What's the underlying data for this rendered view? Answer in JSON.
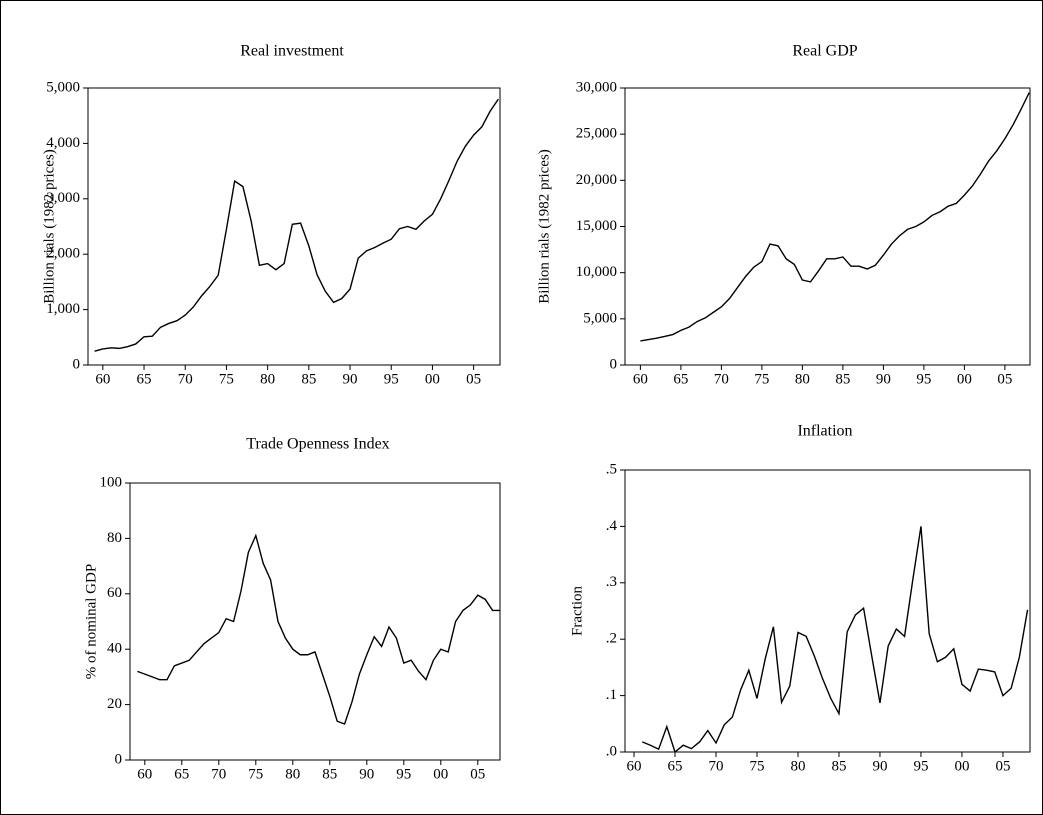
{
  "chart_data": [
    {
      "type": "line",
      "title": "Real investment",
      "y_label": "Billion rials (1982 prices)",
      "color": "#000000",
      "x": [
        1959,
        1960,
        1961,
        1962,
        1963,
        1964,
        1965,
        1966,
        1967,
        1968,
        1969,
        1970,
        1971,
        1972,
        1973,
        1974,
        1975,
        1976,
        1977,
        1978,
        1979,
        1980,
        1981,
        1982,
        1983,
        1984,
        1985,
        1986,
        1987,
        1988,
        1989,
        1990,
        1991,
        1992,
        1993,
        1994,
        1995,
        1996,
        1997,
        1998,
        1999,
        2000,
        2001,
        2002,
        2003,
        2004,
        2005,
        2006,
        2007,
        2008
      ],
      "values": [
        250,
        290,
        310,
        300,
        330,
        380,
        510,
        520,
        680,
        750,
        800,
        900,
        1050,
        1250,
        1420,
        1620,
        2450,
        3320,
        3220,
        2600,
        1800,
        1830,
        1720,
        1830,
        2540,
        2560,
        2150,
        1630,
        1330,
        1130,
        1200,
        1370,
        1930,
        2060,
        2120,
        2200,
        2270,
        2460,
        2500,
        2450,
        2600,
        2720,
        3000,
        3330,
        3680,
        3950,
        4150,
        4300,
        4580,
        4800
      ],
      "xlim": [
        1958.2,
        2008.2
      ],
      "ylim": [
        0,
        5000
      ],
      "xticks": [
        {
          "value": 1960,
          "label": "60"
        },
        {
          "value": 1965,
          "label": "65"
        },
        {
          "value": 1970,
          "label": "70"
        },
        {
          "value": 1975,
          "label": "75"
        },
        {
          "value": 1980,
          "label": "80"
        },
        {
          "value": 1985,
          "label": "85"
        },
        {
          "value": 1990,
          "label": "90"
        },
        {
          "value": 1995,
          "label": "95"
        },
        {
          "value": 2000,
          "label": "00"
        },
        {
          "value": 2005,
          "label": "05"
        }
      ],
      "yticks": [
        0,
        {
          "value": 1000,
          "label": "1,000"
        },
        {
          "value": 2000,
          "label": "2,000"
        },
        {
          "value": 3000,
          "label": "3,000"
        },
        {
          "value": 4000,
          "label": "4,000"
        },
        {
          "value": 5000,
          "label": "5,000"
        }
      ]
    },
    {
      "type": "line",
      "title": "Real GDP",
      "y_label": "Billion rials (1982 prices)",
      "color": "#000000",
      "x": [
        1960,
        1961,
        1962,
        1963,
        1964,
        1965,
        1966,
        1967,
        1968,
        1969,
        1970,
        1971,
        1972,
        1973,
        1974,
        1975,
        1976,
        1977,
        1978,
        1979,
        1980,
        1981,
        1982,
        1983,
        1984,
        1985,
        1986,
        1987,
        1988,
        1989,
        1990,
        1991,
        1992,
        1993,
        1994,
        1995,
        1996,
        1997,
        1998,
        1999,
        2000,
        2001,
        2002,
        2003,
        2004,
        2005,
        2006,
        2007,
        2008
      ],
      "values": [
        2600,
        2750,
        2900,
        3100,
        3300,
        3750,
        4100,
        4700,
        5100,
        5700,
        6300,
        7200,
        8400,
        9600,
        10600,
        11200,
        13100,
        12900,
        11500,
        10900,
        9200,
        9000,
        10200,
        11500,
        11500,
        11700,
        10700,
        10700,
        10400,
        10800,
        11900,
        13100,
        14000,
        14700,
        15000,
        15500,
        16200,
        16600,
        17200,
        17500,
        18400,
        19400,
        20700,
        22100,
        23200,
        24500,
        26000,
        27700,
        29500
      ],
      "xlim": [
        1958.1,
        2008.1
      ],
      "ylim": [
        0,
        30000
      ],
      "xticks": [
        {
          "value": 1960,
          "label": "60"
        },
        {
          "value": 1965,
          "label": "65"
        },
        {
          "value": 1970,
          "label": "70"
        },
        {
          "value": 1975,
          "label": "75"
        },
        {
          "value": 1980,
          "label": "80"
        },
        {
          "value": 1985,
          "label": "85"
        },
        {
          "value": 1990,
          "label": "90"
        },
        {
          "value": 1995,
          "label": "95"
        },
        {
          "value": 2000,
          "label": "00"
        },
        {
          "value": 2005,
          "label": "05"
        }
      ],
      "yticks": [
        0,
        {
          "value": 5000,
          "label": "5,000"
        },
        {
          "value": 10000,
          "label": "10,000"
        },
        {
          "value": 15000,
          "label": "15,000"
        },
        {
          "value": 20000,
          "label": "20,000"
        },
        {
          "value": 25000,
          "label": "25,000"
        },
        {
          "value": 30000,
          "label": "30,000"
        }
      ]
    },
    {
      "type": "line",
      "title": "Trade Openness Index",
      "y_label": "% of nominal GDP",
      "color": "#000000",
      "x": [
        1959,
        1960,
        1961,
        1962,
        1963,
        1964,
        1965,
        1966,
        1967,
        1968,
        1969,
        1970,
        1971,
        1972,
        1973,
        1974,
        1975,
        1976,
        1977,
        1978,
        1979,
        1980,
        1981,
        1982,
        1983,
        1984,
        1985,
        1986,
        1987,
        1988,
        1989,
        1990,
        1991,
        1992,
        1993,
        1994,
        1995,
        1996,
        1997,
        1998,
        1999,
        2000,
        2001,
        2002,
        2003,
        2004,
        2005,
        2006,
        2007,
        2008
      ],
      "values": [
        32,
        31,
        30,
        29,
        29,
        34,
        35,
        36,
        39,
        42,
        44,
        46,
        51,
        50,
        61,
        75,
        81,
        71,
        65,
        50,
        44,
        40,
        38,
        38,
        39,
        31,
        23,
        14,
        13,
        21,
        31,
        38,
        44.5,
        41,
        48,
        44,
        35,
        36,
        32,
        29,
        36,
        40,
        39,
        50,
        54,
        56,
        59.5,
        58,
        54,
        54
      ],
      "xlim": [
        1958,
        2008
      ],
      "ylim": [
        0,
        100
      ],
      "xticks": [
        {
          "value": 1960,
          "label": "60"
        },
        {
          "value": 1965,
          "label": "65"
        },
        {
          "value": 1970,
          "label": "70"
        },
        {
          "value": 1975,
          "label": "75"
        },
        {
          "value": 1980,
          "label": "80"
        },
        {
          "value": 1985,
          "label": "85"
        },
        {
          "value": 1990,
          "label": "90"
        },
        {
          "value": 1995,
          "label": "95"
        },
        {
          "value": 2000,
          "label": "00"
        },
        {
          "value": 2005,
          "label": "05"
        }
      ],
      "yticks": [
        0,
        20,
        40,
        60,
        80,
        100
      ]
    },
    {
      "type": "line",
      "title": "Inflation",
      "y_label": "Fraction",
      "color": "#000000",
      "x": [
        1961,
        1962,
        1963,
        1964,
        1965,
        1966,
        1967,
        1968,
        1969,
        1970,
        1971,
        1972,
        1973,
        1974,
        1975,
        1976,
        1977,
        1978,
        1979,
        1980,
        1981,
        1982,
        1983,
        1984,
        1985,
        1986,
        1987,
        1988,
        1989,
        1990,
        1991,
        1992,
        1993,
        1994,
        1995,
        1996,
        1997,
        1998,
        1999,
        2000,
        2001,
        2002,
        2003,
        2004,
        2005,
        2006,
        2007,
        2008
      ],
      "values": [
        0.018,
        0.012,
        0.005,
        0.045,
        0.0,
        0.012,
        0.006,
        0.018,
        0.038,
        0.016,
        0.048,
        0.062,
        0.11,
        0.145,
        0.095,
        0.165,
        0.222,
        0.088,
        0.117,
        0.212,
        0.205,
        0.17,
        0.13,
        0.095,
        0.068,
        0.213,
        0.243,
        0.255,
        0.17,
        0.087,
        0.188,
        0.218,
        0.205,
        0.305,
        0.4,
        0.21,
        0.16,
        0.168,
        0.183,
        0.12,
        0.108,
        0.147,
        0.145,
        0.142,
        0.1,
        0.113,
        0.168,
        0.252
      ],
      "xlim": [
        1958.9,
        2008.3
      ],
      "ylim": [
        0,
        0.5
      ],
      "xticks": [
        {
          "value": 1960,
          "label": "60"
        },
        {
          "value": 1965,
          "label": "65"
        },
        {
          "value": 1970,
          "label": "70"
        },
        {
          "value": 1975,
          "label": "75"
        },
        {
          "value": 1980,
          "label": "80"
        },
        {
          "value": 1985,
          "label": "85"
        },
        {
          "value": 1990,
          "label": "90"
        },
        {
          "value": 1995,
          "label": "95"
        },
        {
          "value": 2000,
          "label": "00"
        },
        {
          "value": 2005,
          "label": "05"
        }
      ],
      "yticks": [
        {
          "value": 0,
          "label": ".0"
        },
        {
          "value": 0.1,
          "label": ".1"
        },
        {
          "value": 0.2,
          "label": ".2"
        },
        {
          "value": 0.3,
          "label": ".3"
        },
        {
          "value": 0.4,
          "label": ".4"
        },
        {
          "value": 0.5,
          "label": ".5"
        }
      ]
    }
  ]
}
